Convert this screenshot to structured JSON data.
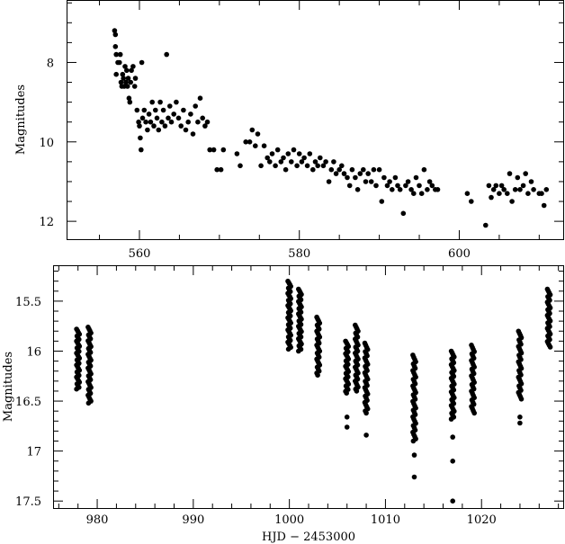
{
  "chart_data": [
    {
      "type": "scatter",
      "title": "",
      "xlabel": "",
      "ylabel": "Magnitudes",
      "xlim": [
        551,
        613
      ],
      "ylim": [
        12.45,
        6.45
      ],
      "y_inverted": true,
      "xticks": [
        560,
        580,
        600
      ],
      "yticks": [
        8,
        10,
        12
      ],
      "tick_labels_x": [
        "560",
        "580",
        "600"
      ],
      "tick_labels_y": [
        "8",
        "10",
        "12"
      ],
      "grid": false,
      "marker_color": "#000000",
      "points": [
        [
          556.9,
          7.2
        ],
        [
          557.0,
          7.3
        ],
        [
          557.0,
          7.6
        ],
        [
          557.1,
          7.8
        ],
        [
          557.1,
          8.3
        ],
        [
          557.3,
          8.0
        ],
        [
          557.5,
          8.0
        ],
        [
          557.6,
          7.8
        ],
        [
          557.7,
          8.5
        ],
        [
          557.8,
          8.6
        ],
        [
          557.9,
          8.3
        ],
        [
          558.0,
          8.4
        ],
        [
          558.1,
          8.6
        ],
        [
          558.2,
          8.1
        ],
        [
          558.3,
          8.5
        ],
        [
          558.4,
          8.2
        ],
        [
          558.5,
          8.6
        ],
        [
          558.6,
          8.4
        ],
        [
          558.7,
          8.9
        ],
        [
          558.8,
          9.0
        ],
        [
          558.9,
          8.5
        ],
        [
          559.0,
          8.2
        ],
        [
          559.2,
          8.1
        ],
        [
          559.4,
          8.6
        ],
        [
          559.5,
          8.4
        ],
        [
          559.7,
          9.2
        ],
        [
          559.9,
          9.5
        ],
        [
          560.0,
          9.6
        ],
        [
          560.1,
          9.9
        ],
        [
          560.2,
          10.2
        ],
        [
          560.3,
          8.0
        ],
        [
          560.4,
          9.4
        ],
        [
          560.6,
          9.2
        ],
        [
          560.8,
          9.5
        ],
        [
          561.0,
          9.7
        ],
        [
          561.2,
          9.3
        ],
        [
          561.4,
          9.5
        ],
        [
          561.6,
          9.0
        ],
        [
          561.8,
          9.6
        ],
        [
          562.0,
          9.2
        ],
        [
          562.2,
          9.4
        ],
        [
          562.4,
          9.7
        ],
        [
          562.6,
          9.0
        ],
        [
          562.8,
          9.5
        ],
        [
          563.0,
          9.2
        ],
        [
          563.2,
          9.6
        ],
        [
          563.4,
          7.8
        ],
        [
          563.6,
          9.4
        ],
        [
          563.8,
          9.1
        ],
        [
          564.0,
          9.5
        ],
        [
          564.3,
          9.3
        ],
        [
          564.6,
          9.0
        ],
        [
          564.9,
          9.4
        ],
        [
          565.2,
          9.6
        ],
        [
          565.5,
          9.2
        ],
        [
          565.8,
          9.7
        ],
        [
          566.1,
          9.5
        ],
        [
          566.4,
          9.3
        ],
        [
          566.7,
          9.8
        ],
        [
          567.0,
          9.1
        ],
        [
          567.3,
          9.5
        ],
        [
          567.6,
          8.9
        ],
        [
          567.9,
          9.4
        ],
        [
          568.2,
          9.6
        ],
        [
          568.5,
          9.5
        ],
        [
          568.8,
          10.2
        ],
        [
          569.3,
          10.2
        ],
        [
          569.7,
          10.7
        ],
        [
          570.2,
          10.7
        ],
        [
          570.5,
          10.2
        ],
        [
          572.2,
          10.3
        ],
        [
          572.6,
          10.6
        ],
        [
          573.3,
          10.0
        ],
        [
          573.8,
          10.0
        ],
        [
          574.1,
          9.7
        ],
        [
          574.5,
          10.1
        ],
        [
          574.8,
          9.8
        ],
        [
          575.2,
          10.6
        ],
        [
          575.6,
          10.1
        ],
        [
          576.0,
          10.4
        ],
        [
          576.3,
          10.5
        ],
        [
          576.6,
          10.3
        ],
        [
          577.0,
          10.6
        ],
        [
          577.3,
          10.2
        ],
        [
          577.7,
          10.5
        ],
        [
          578.0,
          10.4
        ],
        [
          578.3,
          10.7
        ],
        [
          578.6,
          10.3
        ],
        [
          579.0,
          10.5
        ],
        [
          579.3,
          10.2
        ],
        [
          579.7,
          10.6
        ],
        [
          580.0,
          10.3
        ],
        [
          580.3,
          10.5
        ],
        [
          580.6,
          10.4
        ],
        [
          581.0,
          10.6
        ],
        [
          581.3,
          10.3
        ],
        [
          581.7,
          10.7
        ],
        [
          582.0,
          10.5
        ],
        [
          582.3,
          10.6
        ],
        [
          582.6,
          10.4
        ],
        [
          583.0,
          10.6
        ],
        [
          583.3,
          10.5
        ],
        [
          583.7,
          11.0
        ],
        [
          584.0,
          10.7
        ],
        [
          584.3,
          10.5
        ],
        [
          584.6,
          10.8
        ],
        [
          585.0,
          10.7
        ],
        [
          585.3,
          10.6
        ],
        [
          585.6,
          10.8
        ],
        [
          586.0,
          10.9
        ],
        [
          586.3,
          11.1
        ],
        [
          586.6,
          10.7
        ],
        [
          587.0,
          10.9
        ],
        [
          587.3,
          11.2
        ],
        [
          587.6,
          10.8
        ],
        [
          588.0,
          10.7
        ],
        [
          588.3,
          11.0
        ],
        [
          588.6,
          10.8
        ],
        [
          589.0,
          11.0
        ],
        [
          589.3,
          10.7
        ],
        [
          589.6,
          11.1
        ],
        [
          590.0,
          10.7
        ],
        [
          590.3,
          11.5
        ],
        [
          590.6,
          10.9
        ],
        [
          591.0,
          11.1
        ],
        [
          591.3,
          11.0
        ],
        [
          591.6,
          11.2
        ],
        [
          592.0,
          10.9
        ],
        [
          592.3,
          11.1
        ],
        [
          592.6,
          11.2
        ],
        [
          593.0,
          11.8
        ],
        [
          593.3,
          11.1
        ],
        [
          593.6,
          11.0
        ],
        [
          594.0,
          11.2
        ],
        [
          594.3,
          11.3
        ],
        [
          594.6,
          10.9
        ],
        [
          595.0,
          11.1
        ],
        [
          595.3,
          11.3
        ],
        [
          595.6,
          10.7
        ],
        [
          596.0,
          11.2
        ],
        [
          596.3,
          11.0
        ],
        [
          596.6,
          11.1
        ],
        [
          597.0,
          11.2
        ],
        [
          597.3,
          11.2
        ],
        [
          601.0,
          11.3
        ],
        [
          601.5,
          11.5
        ],
        [
          603.3,
          12.1
        ],
        [
          603.7,
          11.1
        ],
        [
          604.0,
          11.4
        ],
        [
          604.3,
          11.2
        ],
        [
          604.6,
          11.1
        ],
        [
          605.0,
          11.3
        ],
        [
          605.3,
          11.1
        ],
        [
          605.6,
          11.2
        ],
        [
          606.0,
          11.3
        ],
        [
          606.3,
          10.8
        ],
        [
          606.6,
          11.5
        ],
        [
          607.0,
          11.2
        ],
        [
          607.3,
          10.9
        ],
        [
          607.6,
          11.2
        ],
        [
          608.0,
          11.1
        ],
        [
          608.3,
          10.8
        ],
        [
          608.6,
          11.3
        ],
        [
          609.0,
          11.0
        ],
        [
          609.3,
          11.2
        ],
        [
          610.0,
          11.3
        ],
        [
          610.3,
          11.3
        ],
        [
          610.6,
          11.6
        ],
        [
          610.9,
          11.2
        ]
      ]
    },
    {
      "type": "scatter",
      "title": "",
      "xlabel": "HJD − 2453000",
      "ylabel": "Magnitudes",
      "xlim": [
        975.5,
        1028.5
      ],
      "ylim": [
        17.57,
        15.15
      ],
      "y_inverted": true,
      "xticks": [
        980,
        990,
        1000,
        1010,
        1020
      ],
      "yticks": [
        15.5,
        16,
        16.5,
        17,
        17.5
      ],
      "tick_labels_x": [
        "980",
        "990",
        "1000",
        "1010",
        "1020"
      ],
      "tick_labels_y": [
        "15.5",
        "16",
        "16.5",
        "17",
        "17.5"
      ],
      "grid": false,
      "marker_color": "#000000",
      "clusters": [
        {
          "x": 978.0,
          "y_min": 15.78,
          "y_max": 16.38,
          "n": 36,
          "outliers": []
        },
        {
          "x": 979.2,
          "y_min": 15.76,
          "y_max": 16.52,
          "n": 40,
          "outliers": []
        },
        {
          "x": 1000.0,
          "y_min": 15.3,
          "y_max": 15.98,
          "n": 40,
          "outliers": []
        },
        {
          "x": 1001.1,
          "y_min": 15.38,
          "y_max": 16.0,
          "n": 36,
          "outliers": []
        },
        {
          "x": 1003.0,
          "y_min": 15.66,
          "y_max": 16.24,
          "n": 30,
          "outliers": []
        },
        {
          "x": 1006.0,
          "y_min": 15.9,
          "y_max": 16.42,
          "n": 30,
          "outliers": [
            16.66,
            16.76
          ]
        },
        {
          "x": 1007.0,
          "y_min": 15.74,
          "y_max": 16.4,
          "n": 34,
          "outliers": []
        },
        {
          "x": 1008.0,
          "y_min": 15.92,
          "y_max": 16.62,
          "n": 34,
          "outliers": [
            16.84
          ]
        },
        {
          "x": 1013.0,
          "y_min": 16.04,
          "y_max": 16.9,
          "n": 40,
          "outliers": [
            17.04,
            17.26
          ]
        },
        {
          "x": 1017.0,
          "y_min": 16.0,
          "y_max": 16.68,
          "n": 36,
          "outliers": [
            16.86,
            17.1,
            17.5
          ]
        },
        {
          "x": 1019.1,
          "y_min": 15.94,
          "y_max": 16.62,
          "n": 32,
          "outliers": []
        },
        {
          "x": 1024.0,
          "y_min": 15.8,
          "y_max": 16.48,
          "n": 32,
          "outliers": [
            16.66,
            16.72
          ]
        },
        {
          "x": 1027.0,
          "y_min": 15.38,
          "y_max": 15.96,
          "n": 32,
          "outliers": []
        }
      ]
    }
  ]
}
